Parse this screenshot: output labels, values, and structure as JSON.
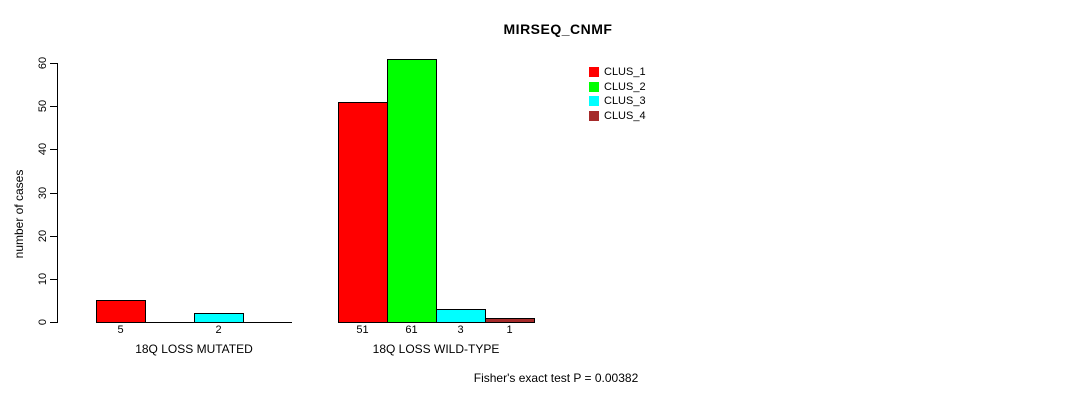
{
  "chart_data": {
    "type": "bar",
    "title": "MIRSEQ_CNMF",
    "ylabel": "number of cases",
    "xlabel": "",
    "ylim": [
      0,
      60
    ],
    "yticks": [
      0,
      10,
      20,
      30,
      40,
      50,
      60
    ],
    "grid": false,
    "legend_position": "top-right",
    "bar_border_color": "#000000",
    "categories": [
      "18Q LOSS MUTATED",
      "18Q LOSS WILD-TYPE"
    ],
    "series": [
      {
        "name": "CLUS_1",
        "color": "#FF0000",
        "values": [
          5,
          51
        ]
      },
      {
        "name": "CLUS_2",
        "color": "#00FF00",
        "values": [
          0,
          61
        ]
      },
      {
        "name": "CLUS_3",
        "color": "#00FFFF",
        "values": [
          2,
          3
        ]
      },
      {
        "name": "CLUS_4",
        "color": "#A52A2A",
        "values": [
          0,
          1
        ]
      }
    ],
    "bar_value_labels": [
      [
        "5",
        "",
        "2",
        ""
      ],
      [
        "51",
        "61",
        "3",
        "1"
      ]
    ],
    "annotation": "Fisher's exact test P = 0.00382"
  }
}
